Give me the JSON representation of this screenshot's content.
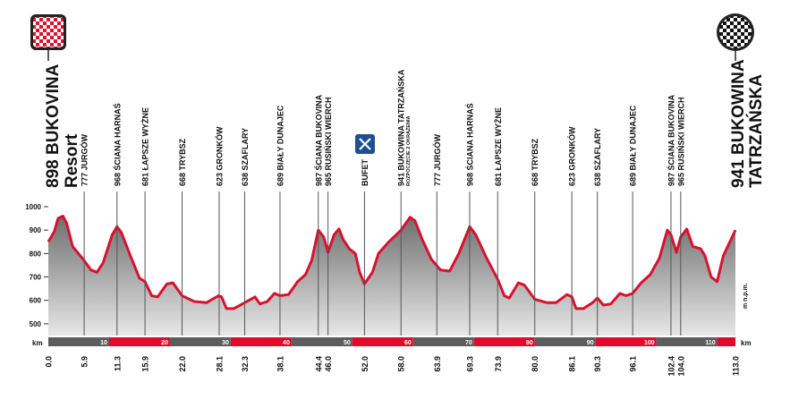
{
  "chart_data": {
    "type": "area",
    "start_label": "898 BUKOVINA",
    "start_sub": "Resort",
    "finish_label": "941 BUKOWINA",
    "finish_sub": "TATRZAŃSKA",
    "y_unit": "m n.p.m.",
    "x_unit": "km",
    "ylim": [
      450,
      1000
    ],
    "y_ticks": [
      1000,
      900,
      800,
      700,
      600,
      500
    ],
    "xlim": [
      0,
      113
    ],
    "km_ticks": [
      10,
      20,
      30,
      40,
      50,
      60,
      70,
      80,
      90,
      100,
      110
    ],
    "km_markers_text": [
      "0.0",
      "5.9",
      "11.3",
      "15.9",
      "22.0",
      "28.1",
      "32.3",
      "38.1",
      "44.4",
      "46.0",
      "52.0",
      "58.0",
      "63.9",
      "69.3",
      "73.9",
      "80.0",
      "86.1",
      "90.3",
      "96.1",
      "102.4",
      "104.0",
      "113.0"
    ],
    "waypoints": [
      {
        "km": 5.9,
        "label": "777 JURGÓW"
      },
      {
        "km": 11.3,
        "label": "968 ŚCIANA HARNAŚ"
      },
      {
        "km": 15.9,
        "label": "681 ŁAPSZE WYŻNE"
      },
      {
        "km": 22.0,
        "label": "668 TRYBSZ"
      },
      {
        "km": 28.1,
        "label": "623 GRONKÓW"
      },
      {
        "km": 32.3,
        "label": "638 SZAFLARY"
      },
      {
        "km": 38.1,
        "label": "689 BIAŁY DUNAJEC"
      },
      {
        "km": 44.4,
        "label": "987 ŚCIANA BUKOVINA"
      },
      {
        "km": 46.0,
        "label": "965 RUSIŃSKI WIERCH"
      },
      {
        "km": 52.0,
        "label": "BUFET"
      },
      {
        "km": 58.0,
        "label": "941 BUKOWINA TATRZAŃSKA",
        "sub": "ROZPOCZĘCIE 2 OKRĄŻENIA"
      },
      {
        "km": 63.9,
        "label": "777 JURGÓW"
      },
      {
        "km": 69.3,
        "label": "968 ŚCIANA HARNAŚ"
      },
      {
        "km": 73.9,
        "label": "681 ŁAPSZE WYŻNE"
      },
      {
        "km": 80.0,
        "label": "668 TRYBSZ"
      },
      {
        "km": 86.1,
        "label": "623 GRONKÓW"
      },
      {
        "km": 90.3,
        "label": "638 SZAFLARY"
      },
      {
        "km": 96.1,
        "label": "689 BIAŁY DUNAJEC"
      },
      {
        "km": 102.4,
        "label": "987 ŚCIANA BUKOVINA"
      },
      {
        "km": 104.0,
        "label": "965 RUSIŃSKI WIERCH"
      }
    ],
    "profile": [
      {
        "x": 0,
        "y": 850
      },
      {
        "x": 1.0,
        "y": 895
      },
      {
        "x": 1.6,
        "y": 950
      },
      {
        "x": 2.4,
        "y": 960
      },
      {
        "x": 3.0,
        "y": 930
      },
      {
        "x": 4.0,
        "y": 830
      },
      {
        "x": 5.9,
        "y": 770
      },
      {
        "x": 7.0,
        "y": 730
      },
      {
        "x": 8.0,
        "y": 720
      },
      {
        "x": 9.0,
        "y": 760
      },
      {
        "x": 10.5,
        "y": 880
      },
      {
        "x": 11.3,
        "y": 915
      },
      {
        "x": 12.0,
        "y": 890
      },
      {
        "x": 13.5,
        "y": 790
      },
      {
        "x": 15.0,
        "y": 695
      },
      {
        "x": 15.9,
        "y": 680
      },
      {
        "x": 17.0,
        "y": 620
      },
      {
        "x": 18.0,
        "y": 615
      },
      {
        "x": 19.5,
        "y": 670
      },
      {
        "x": 20.5,
        "y": 675
      },
      {
        "x": 22.0,
        "y": 620
      },
      {
        "x": 24.0,
        "y": 595
      },
      {
        "x": 26.0,
        "y": 590
      },
      {
        "x": 28.0,
        "y": 620
      },
      {
        "x": 28.5,
        "y": 615
      },
      {
        "x": 29.3,
        "y": 565
      },
      {
        "x": 30.5,
        "y": 565
      },
      {
        "x": 32.3,
        "y": 590
      },
      {
        "x": 34.0,
        "y": 615
      },
      {
        "x": 34.8,
        "y": 585
      },
      {
        "x": 36.0,
        "y": 595
      },
      {
        "x": 37.2,
        "y": 630
      },
      {
        "x": 38.1,
        "y": 620
      },
      {
        "x": 39.5,
        "y": 625
      },
      {
        "x": 41.0,
        "y": 680
      },
      {
        "x": 42.3,
        "y": 710
      },
      {
        "x": 43.3,
        "y": 770
      },
      {
        "x": 44.4,
        "y": 900
      },
      {
        "x": 45.3,
        "y": 870
      },
      {
        "x": 46.0,
        "y": 805
      },
      {
        "x": 47.0,
        "y": 880
      },
      {
        "x": 47.8,
        "y": 905
      },
      {
        "x": 48.5,
        "y": 860
      },
      {
        "x": 49.5,
        "y": 820
      },
      {
        "x": 50.5,
        "y": 800
      },
      {
        "x": 51.2,
        "y": 720
      },
      {
        "x": 52.0,
        "y": 670
      },
      {
        "x": 53.3,
        "y": 720
      },
      {
        "x": 54.3,
        "y": 800
      },
      {
        "x": 56.0,
        "y": 850
      },
      {
        "x": 58.0,
        "y": 900
      },
      {
        "x": 59.5,
        "y": 955
      },
      {
        "x": 60.3,
        "y": 940
      },
      {
        "x": 61.5,
        "y": 860
      },
      {
        "x": 63.0,
        "y": 775
      },
      {
        "x": 64.5,
        "y": 730
      },
      {
        "x": 66.0,
        "y": 725
      },
      {
        "x": 67.5,
        "y": 800
      },
      {
        "x": 69.3,
        "y": 915
      },
      {
        "x": 70.3,
        "y": 880
      },
      {
        "x": 72.0,
        "y": 785
      },
      {
        "x": 73.9,
        "y": 690
      },
      {
        "x": 75.0,
        "y": 620
      },
      {
        "x": 75.8,
        "y": 610
      },
      {
        "x": 77.3,
        "y": 675
      },
      {
        "x": 78.3,
        "y": 665
      },
      {
        "x": 80.0,
        "y": 605
      },
      {
        "x": 82.0,
        "y": 590
      },
      {
        "x": 83.5,
        "y": 590
      },
      {
        "x": 85.3,
        "y": 625
      },
      {
        "x": 86.1,
        "y": 615
      },
      {
        "x": 86.8,
        "y": 565
      },
      {
        "x": 88.0,
        "y": 565
      },
      {
        "x": 89.5,
        "y": 590
      },
      {
        "x": 90.3,
        "y": 610
      },
      {
        "x": 91.3,
        "y": 580
      },
      {
        "x": 92.5,
        "y": 585
      },
      {
        "x": 94.0,
        "y": 630
      },
      {
        "x": 95.0,
        "y": 620
      },
      {
        "x": 96.1,
        "y": 630
      },
      {
        "x": 97.5,
        "y": 675
      },
      {
        "x": 99.0,
        "y": 710
      },
      {
        "x": 100.5,
        "y": 780
      },
      {
        "x": 101.8,
        "y": 900
      },
      {
        "x": 102.4,
        "y": 880
      },
      {
        "x": 103.3,
        "y": 805
      },
      {
        "x": 104.0,
        "y": 870
      },
      {
        "x": 105.0,
        "y": 905
      },
      {
        "x": 106.0,
        "y": 830
      },
      {
        "x": 107.3,
        "y": 820
      },
      {
        "x": 108.0,
        "y": 790
      },
      {
        "x": 109.0,
        "y": 700
      },
      {
        "x": 110.0,
        "y": 680
      },
      {
        "x": 111.0,
        "y": 790
      },
      {
        "x": 113.0,
        "y": 900
      }
    ]
  },
  "colors": {
    "line": "#d9112f",
    "fill_top": "#6e6e6e",
    "fill_bottom": "#e7e7e7",
    "km_red": "#e20a2b",
    "km_grey": "#5d5d5d",
    "guide": "#555555"
  }
}
